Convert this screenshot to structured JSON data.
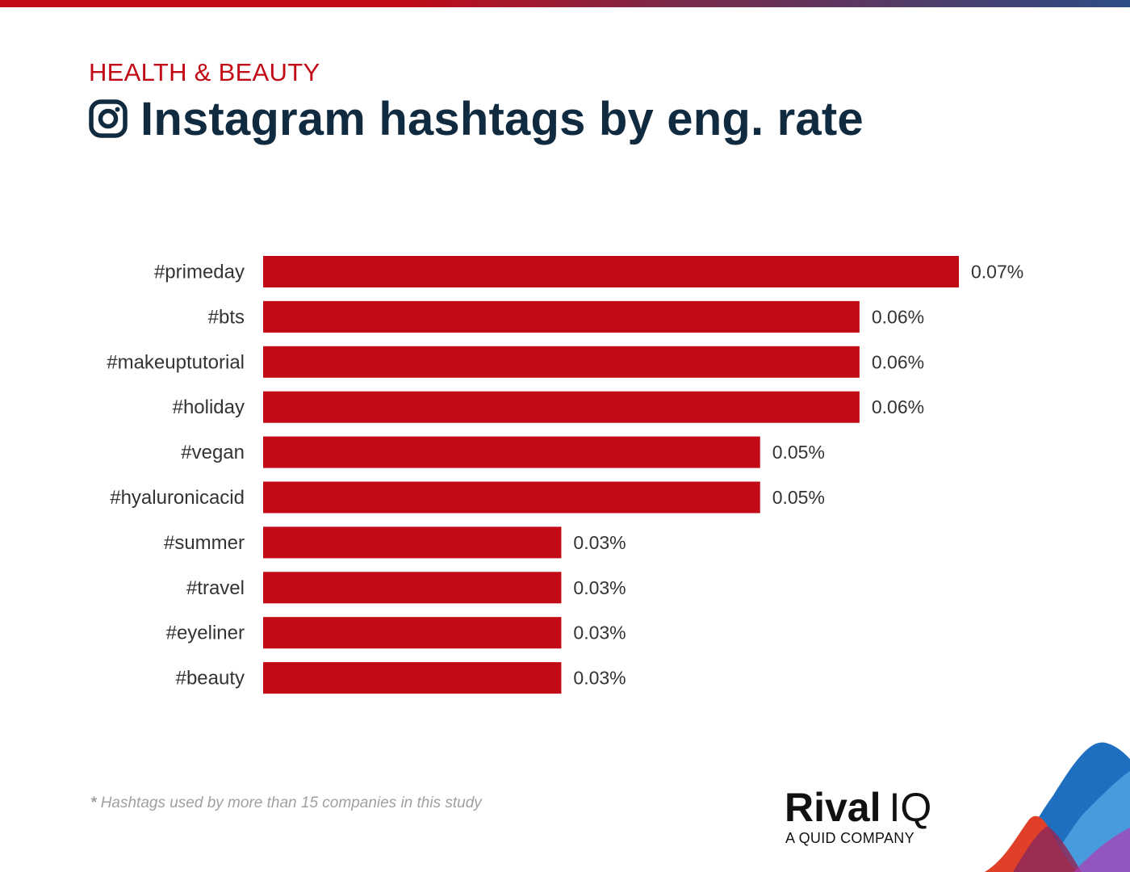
{
  "header": {
    "category": "HEALTH & BEAUTY",
    "title": "Instagram hashtags by eng. rate"
  },
  "chart_data": {
    "type": "bar",
    "orientation": "horizontal",
    "title": "Instagram hashtags by eng. rate",
    "categories": [
      "#primeday",
      "#bts",
      "#makeuptutorial",
      "#holiday",
      "#vegan",
      "#hyaluronicacid",
      "#summer",
      "#travel",
      "#eyeliner",
      "#beauty"
    ],
    "values": [
      0.07,
      0.06,
      0.06,
      0.06,
      0.05,
      0.05,
      0.03,
      0.03,
      0.03,
      0.03
    ],
    "value_labels": [
      "0.07%",
      "0.06%",
      "0.06%",
      "0.06%",
      "0.05%",
      "0.05%",
      "0.03%",
      "0.03%",
      "0.03%",
      "0.03%"
    ],
    "unit": "%",
    "xlim": [
      0,
      0.07
    ],
    "bar_color": "#c20a16",
    "grid": false
  },
  "footnote": {
    "marker": "*",
    "text": "Hashtags used by more than 15 companies in this study"
  },
  "brand": {
    "name_a": "Rival",
    "name_b": "IQ",
    "tagline": "A QUID COMPANY"
  },
  "colors": {
    "accent": "#c20a16",
    "title": "#102a3f",
    "label": "#333333"
  }
}
